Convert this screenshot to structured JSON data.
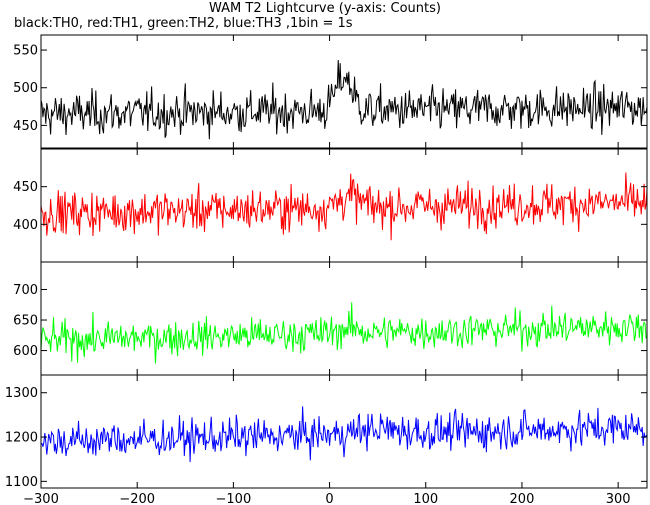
{
  "chart_data": {
    "type": "line",
    "title": "WAM T2 Lightcurve (y-axis: Counts)",
    "subtitle": "black:TH0, red:TH1, green:TH2, blue:TH3 ,1bin = 1s",
    "x_range": [
      -300,
      330
    ],
    "x_ticks": [
      -300,
      -200,
      -100,
      0,
      100,
      200,
      300
    ],
    "panels": [
      {
        "name": "TH0",
        "color": "#000000",
        "ylim": [
          420,
          570
        ],
        "y_ticks": [
          450,
          500,
          550
        ],
        "baseline": 465,
        "slope": 0.028,
        "noise": 22,
        "burst": {
          "center": 15,
          "width": 12,
          "height": 45
        }
      },
      {
        "name": "TH1",
        "color": "#ff0000",
        "ylim": [
          350,
          500
        ],
        "y_ticks": [
          400,
          450
        ],
        "baseline": 415,
        "slope": 0.045,
        "noise": 22,
        "burst": {
          "center": 20,
          "width": 15,
          "height": 15
        }
      },
      {
        "name": "TH2",
        "color": "#00ff00",
        "ylim": [
          560,
          745
        ],
        "y_ticks": [
          600,
          650,
          700
        ],
        "baseline": 617,
        "slope": 0.072,
        "noise": 22,
        "burst": {
          "center": 20,
          "width": 15,
          "height": 8
        }
      },
      {
        "name": "TH3",
        "color": "#0000ff",
        "ylim": [
          1085,
          1340
        ],
        "y_ticks": [
          1100,
          1200,
          1300
        ],
        "baseline": 1190,
        "slope": 0.1,
        "noise": 32,
        "burst": {
          "center": 50,
          "width": 30,
          "height": 10
        }
      }
    ]
  }
}
